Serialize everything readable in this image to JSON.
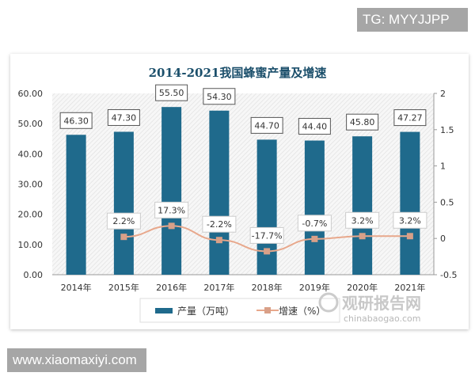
{
  "overlays": {
    "top_right": "TG: MYYJJPP",
    "bottom_left": "www.xiaomaxiyi.com"
  },
  "watermark": {
    "logo_text": "观研报告网",
    "url": "chinabaogao.com"
  },
  "chart_data": {
    "type": "bar+line",
    "title": "2014-2021我国蜂蜜产量及增速",
    "categories": [
      "2014年",
      "2015年",
      "2016年",
      "2017年",
      "2018年",
      "2019年",
      "2020年",
      "2021年"
    ],
    "series": [
      {
        "name": "产量（万吨）",
        "type": "bar",
        "axis": "left",
        "values": [
          46.3,
          47.3,
          55.5,
          54.3,
          44.7,
          44.4,
          45.8,
          47.27
        ],
        "labels": [
          "46.30",
          "47.30",
          "55.50",
          "54.30",
          "44.70",
          "44.40",
          "45.80",
          "47.27"
        ],
        "color": "#1f6a8c"
      },
      {
        "name": "增速（%）",
        "type": "line",
        "axis": "right",
        "values": [
          null,
          0.022,
          0.173,
          -0.022,
          -0.177,
          -0.007,
          0.032,
          0.032
        ],
        "labels": [
          "",
          "2.2%",
          "17.3%",
          "-2.2%",
          "-17.7%",
          "-0.7%",
          "3.2%",
          "3.2%"
        ],
        "color": "#e8a88c"
      }
    ],
    "y_left": {
      "range": [
        0,
        60
      ],
      "ticks": [
        "0.00",
        "10.00",
        "20.00",
        "30.00",
        "40.00",
        "50.00",
        "60.00"
      ]
    },
    "y_right": {
      "range": [
        -0.5,
        2
      ],
      "ticks": [
        "-0.5",
        "0",
        "0.5",
        "1",
        "1.5",
        "2"
      ]
    },
    "legend": "bottom",
    "grid": false,
    "title_color": "#1b4f6b"
  }
}
